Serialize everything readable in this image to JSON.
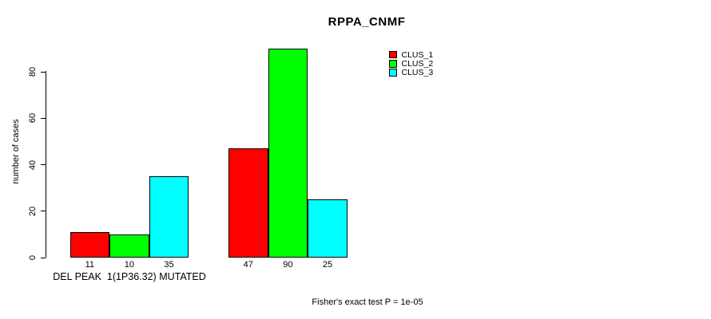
{
  "chart_data": {
    "type": "bar",
    "title": "RPPA_CNMF",
    "xlabel": "",
    "ylabel": "number of cases",
    "ylim": [
      0,
      90
    ],
    "yticks": [
      0,
      20,
      40,
      60,
      80
    ],
    "grid": false,
    "legend_position": "top-right",
    "bar_border_color": "#000000",
    "categories": [
      "DEL PEAK  1(1P36.32) MUTATED",
      ""
    ],
    "series": [
      {
        "name": "CLUS_1",
        "color": "#ff0000",
        "values": [
          11,
          47
        ]
      },
      {
        "name": "CLUS_2",
        "color": "#00ff00",
        "values": [
          10,
          90
        ]
      },
      {
        "name": "CLUS_3",
        "color": "#00ffff",
        "values": [
          35,
          25
        ]
      }
    ],
    "bar_value_labels": [
      [
        11,
        10,
        35
      ],
      [
        47,
        90,
        25
      ]
    ],
    "annotation": "Fisher's exact test P = 1e-05"
  }
}
